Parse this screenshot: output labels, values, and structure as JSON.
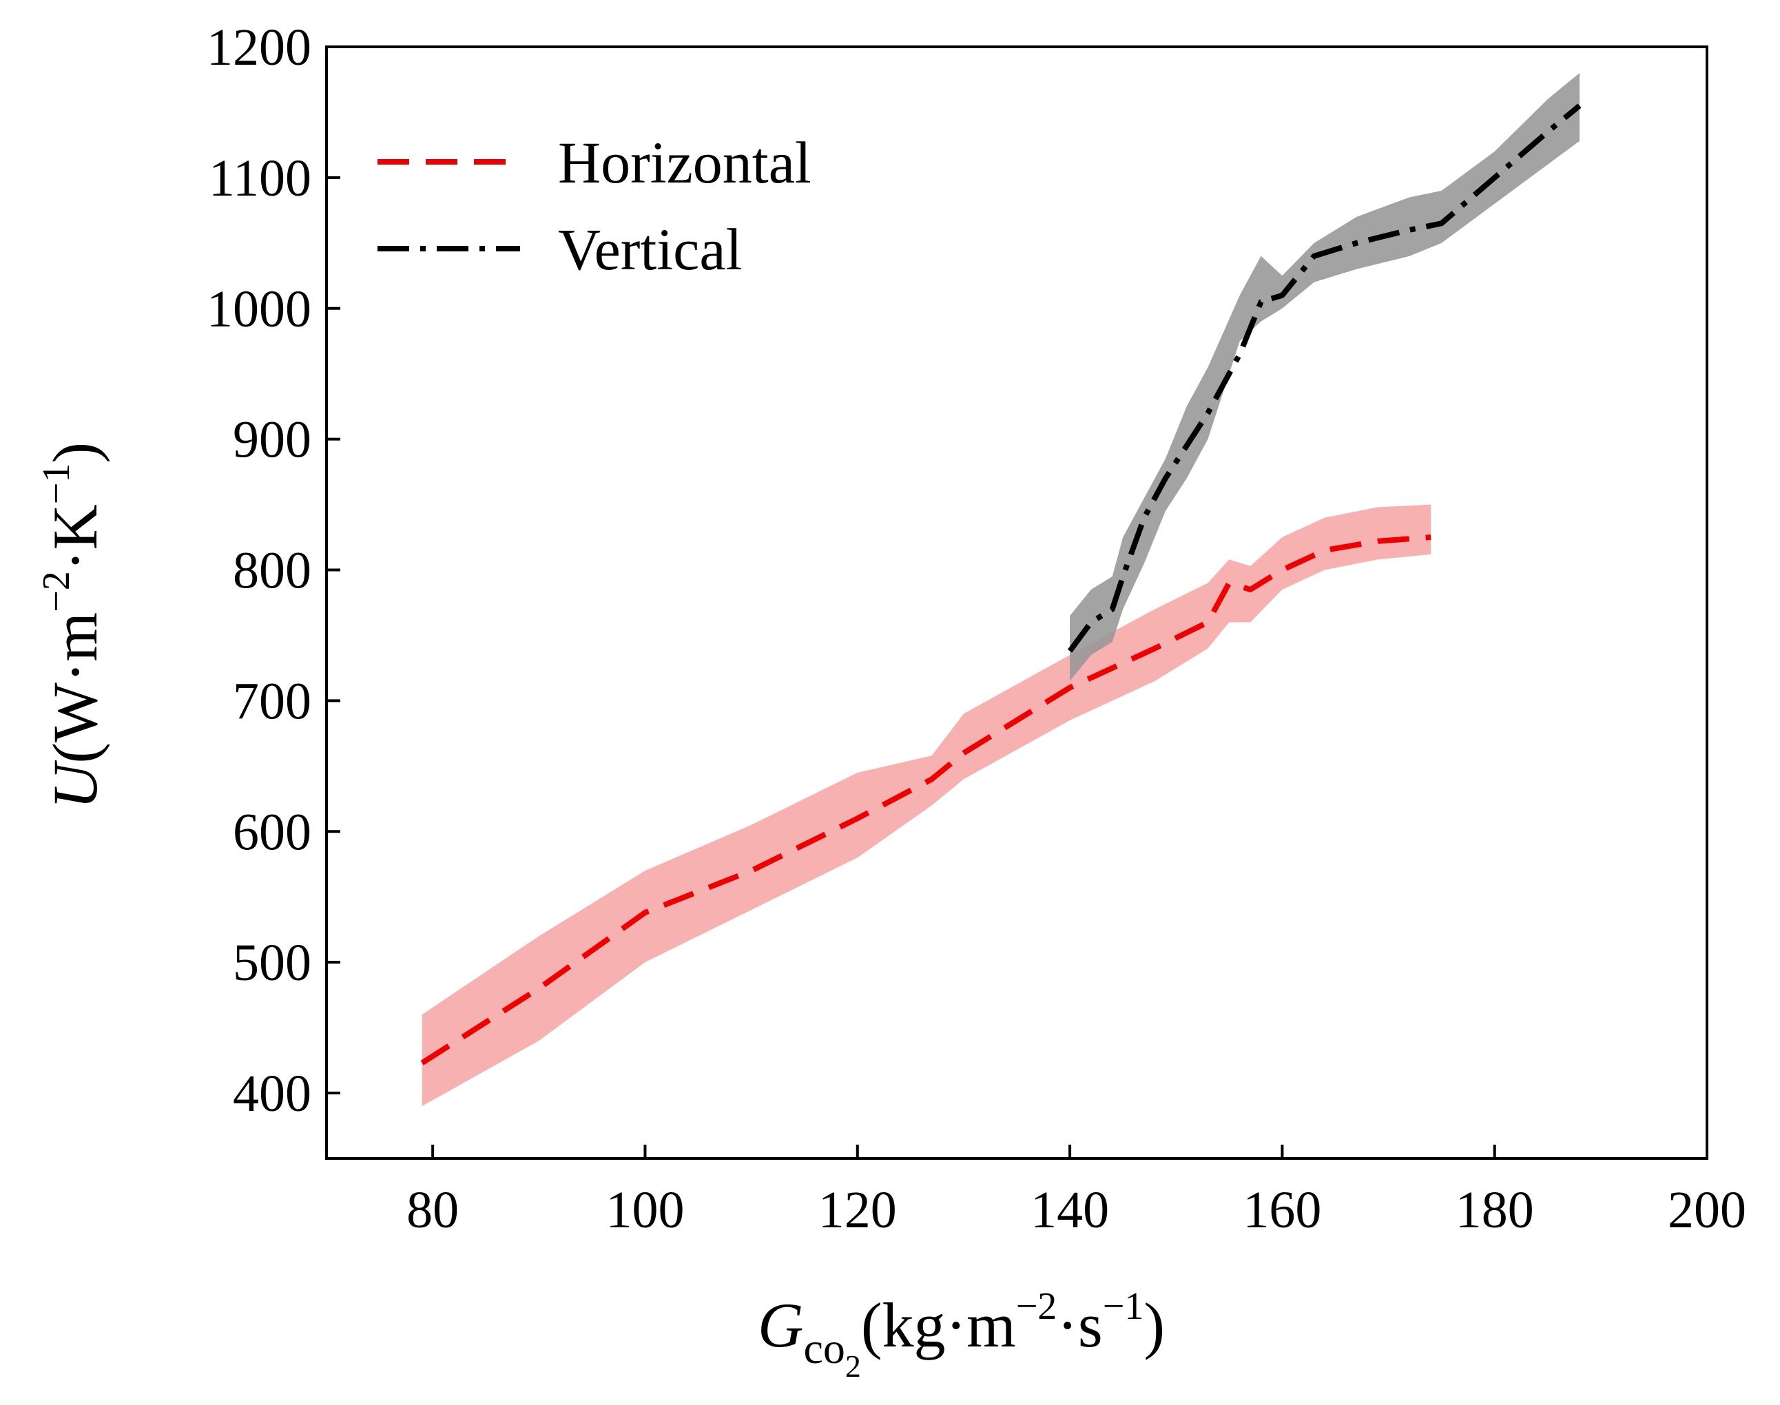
{
  "chart_data": {
    "type": "line",
    "title": "",
    "xlabel": {
      "symbol": "G",
      "subscript_main": "co",
      "subscript_sub": "2",
      "unit_prefix": "(kg·m",
      "exp1": "−2",
      "unit_mid": "·s",
      "exp2": "−1",
      "unit_suffix": ")"
    },
    "ylabel": {
      "symbol": "U",
      "unit_prefix": "(W·m",
      "exp1": "−2",
      "unit_mid": "·K",
      "exp2": "−1",
      "unit_suffix": ")"
    },
    "xlim": [
      70,
      200
    ],
    "ylim": [
      350,
      1200
    ],
    "xticks": [
      80,
      100,
      120,
      140,
      160,
      180,
      200
    ],
    "yticks": [
      400,
      500,
      600,
      700,
      800,
      900,
      1000,
      1100,
      1200
    ],
    "xtick_labels": [
      "80",
      "100",
      "120",
      "140",
      "160",
      "180",
      "200"
    ],
    "ytick_labels": [
      "400",
      "500",
      "600",
      "700",
      "800",
      "900",
      "1000",
      "1100",
      "1200"
    ],
    "grid": false,
    "legend_position": "top-left",
    "series": [
      {
        "name": "Horizontal",
        "color": "#ee0000",
        "band_color": "#f7a3a3",
        "linestyle": "dashed",
        "x": [
          79,
          90,
          100,
          110,
          120,
          127,
          130,
          140,
          148,
          153,
          155,
          157,
          160,
          164,
          169,
          174
        ],
        "y": [
          423,
          480,
          538,
          570,
          610,
          640,
          660,
          710,
          740,
          760,
          790,
          785,
          800,
          815,
          822,
          825
        ],
        "band_lower": [
          390,
          440,
          500,
          540,
          580,
          620,
          640,
          685,
          715,
          740,
          760,
          760,
          785,
          800,
          808,
          812
        ],
        "band_upper": [
          460,
          520,
          570,
          605,
          645,
          658,
          690,
          735,
          770,
          790,
          808,
          803,
          825,
          840,
          848,
          850
        ]
      },
      {
        "name": "Vertical",
        "color": "#000000",
        "band_color": "#999999",
        "linestyle": "dashdot",
        "x": [
          140,
          142,
          144,
          145,
          147,
          149,
          151,
          153,
          156,
          158,
          160,
          163,
          167,
          172,
          175,
          180,
          185,
          188
        ],
        "y": [
          738,
          760,
          770,
          795,
          840,
          870,
          895,
          920,
          965,
          1005,
          1010,
          1040,
          1050,
          1060,
          1065,
          1100,
          1135,
          1155
        ],
        "band_lower": [
          715,
          735,
          745,
          770,
          805,
          845,
          870,
          900,
          975,
          990,
          1000,
          1020,
          1030,
          1040,
          1050,
          1080,
          1110,
          1128
        ],
        "band_upper": [
          765,
          785,
          795,
          825,
          855,
          885,
          925,
          955,
          1010,
          1040,
          1025,
          1050,
          1070,
          1085,
          1090,
          1120,
          1160,
          1180
        ]
      }
    ]
  }
}
